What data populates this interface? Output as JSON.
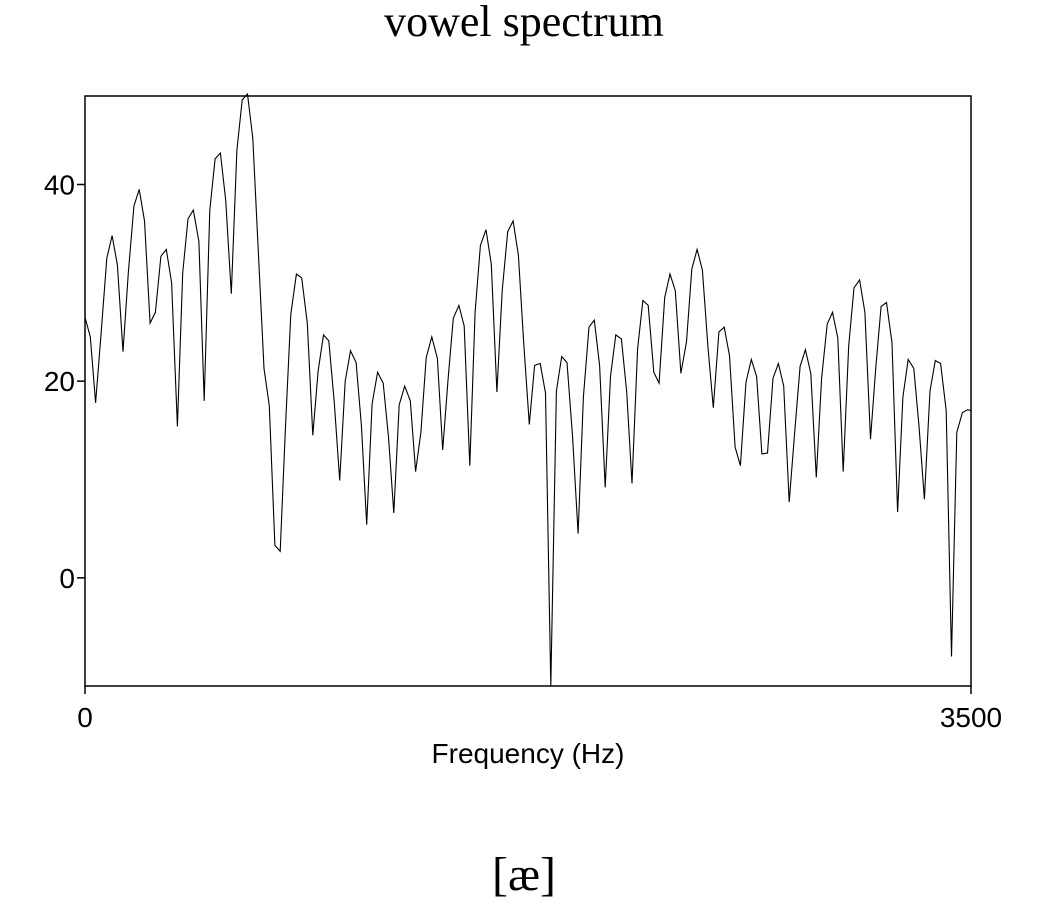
{
  "title": "vowel spectrum",
  "caption": "[æ]",
  "chart_data": {
    "type": "line",
    "title": "vowel spectrum",
    "xlabel": "Frequency (Hz)",
    "ylabel": "",
    "xlim": [
      0,
      3500
    ],
    "ylim": [
      -11,
      49
    ],
    "x_ticks": [
      0,
      3500
    ],
    "x_tick_labels": [
      "0",
      "3500"
    ],
    "y_ticks": [
      0,
      20,
      40
    ],
    "y_tick_labels": [
      "0",
      "20",
      "40"
    ],
    "grid": false,
    "legend": "none",
    "line_color": "#000000",
    "series": [
      {
        "values": [
          [
            0,
            26.5
          ],
          [
            21,
            24.5
          ],
          [
            42,
            17.8
          ],
          [
            63,
            24.6
          ],
          [
            86,
            32.5
          ],
          [
            107,
            34.8
          ],
          [
            128,
            31.8
          ],
          [
            150,
            23.0
          ],
          [
            171,
            31.0
          ],
          [
            193,
            37.8
          ],
          [
            214,
            39.5
          ],
          [
            235,
            36.3
          ],
          [
            257,
            25.9
          ],
          [
            278,
            27.0
          ],
          [
            300,
            32.7
          ],
          [
            321,
            33.4
          ],
          [
            342,
            30.0
          ],
          [
            365,
            15.4
          ],
          [
            386,
            31.0
          ],
          [
            407,
            36.5
          ],
          [
            428,
            37.4
          ],
          [
            450,
            34.2
          ],
          [
            471,
            18.0
          ],
          [
            493,
            37.4
          ],
          [
            514,
            42.6
          ],
          [
            535,
            43.2
          ],
          [
            556,
            38.4
          ],
          [
            578,
            28.9
          ],
          [
            600,
            43.5
          ],
          [
            621,
            48.6
          ],
          [
            642,
            49.2
          ],
          [
            663,
            44.7
          ],
          [
            685,
            33.0
          ],
          [
            707,
            21.3
          ],
          [
            728,
            17.5
          ],
          [
            750,
            3.3
          ],
          [
            771,
            2.7
          ],
          [
            792,
            15.4
          ],
          [
            813,
            26.8
          ],
          [
            835,
            30.9
          ],
          [
            856,
            30.5
          ],
          [
            878,
            25.9
          ],
          [
            900,
            14.5
          ],
          [
            921,
            21.0
          ],
          [
            942,
            24.7
          ],
          [
            963,
            24.1
          ],
          [
            985,
            17.8
          ],
          [
            1006,
            9.9
          ],
          [
            1028,
            20.0
          ],
          [
            1049,
            23.1
          ],
          [
            1071,
            21.9
          ],
          [
            1092,
            15.5
          ],
          [
            1113,
            5.4
          ],
          [
            1134,
            17.7
          ],
          [
            1156,
            20.9
          ],
          [
            1178,
            19.8
          ],
          [
            1199,
            14.3
          ],
          [
            1220,
            6.6
          ],
          [
            1241,
            17.6
          ],
          [
            1263,
            19.5
          ],
          [
            1285,
            18.0
          ],
          [
            1306,
            10.8
          ],
          [
            1327,
            14.8
          ],
          [
            1348,
            22.4
          ],
          [
            1370,
            24.5
          ],
          [
            1392,
            22.3
          ],
          [
            1413,
            13.0
          ],
          [
            1434,
            20.1
          ],
          [
            1455,
            26.4
          ],
          [
            1477,
            27.7
          ],
          [
            1498,
            25.6
          ],
          [
            1520,
            11.4
          ],
          [
            1541,
            27.0
          ],
          [
            1562,
            33.8
          ],
          [
            1584,
            35.4
          ],
          [
            1605,
            31.9
          ],
          [
            1627,
            18.9
          ],
          [
            1648,
            29.2
          ],
          [
            1670,
            35.2
          ],
          [
            1691,
            36.3
          ],
          [
            1712,
            32.8
          ],
          [
            1733,
            23.9
          ],
          [
            1755,
            15.6
          ],
          [
            1776,
            21.6
          ],
          [
            1798,
            21.8
          ],
          [
            1819,
            18.8
          ],
          [
            1840,
            -11.0
          ],
          [
            1862,
            19.0
          ],
          [
            1883,
            22.5
          ],
          [
            1904,
            21.9
          ],
          [
            1926,
            14.3
          ],
          [
            1948,
            4.5
          ],
          [
            1969,
            18.4
          ],
          [
            1991,
            25.5
          ],
          [
            2012,
            26.2
          ],
          [
            2033,
            21.6
          ],
          [
            2055,
            9.2
          ],
          [
            2076,
            20.5
          ],
          [
            2097,
            24.7
          ],
          [
            2119,
            24.3
          ],
          [
            2140,
            18.9
          ],
          [
            2161,
            9.6
          ],
          [
            2183,
            23.3
          ],
          [
            2204,
            28.2
          ],
          [
            2225,
            27.7
          ],
          [
            2247,
            20.9
          ],
          [
            2268,
            19.8
          ],
          [
            2290,
            28.5
          ],
          [
            2311,
            30.9
          ],
          [
            2332,
            29.2
          ],
          [
            2354,
            20.8
          ],
          [
            2376,
            24.0
          ],
          [
            2397,
            31.4
          ],
          [
            2418,
            33.4
          ],
          [
            2439,
            31.3
          ],
          [
            2461,
            23.4
          ],
          [
            2482,
            17.3
          ],
          [
            2504,
            25.0
          ],
          [
            2525,
            25.5
          ],
          [
            2546,
            22.6
          ],
          [
            2568,
            13.3
          ],
          [
            2589,
            11.4
          ],
          [
            2611,
            19.9
          ],
          [
            2632,
            22.2
          ],
          [
            2653,
            20.5
          ],
          [
            2674,
            12.6
          ],
          [
            2696,
            12.7
          ],
          [
            2718,
            20.3
          ],
          [
            2739,
            21.8
          ],
          [
            2760,
            19.5
          ],
          [
            2782,
            7.7
          ],
          [
            2803,
            14.7
          ],
          [
            2825,
            21.5
          ],
          [
            2846,
            23.2
          ],
          [
            2867,
            20.8
          ],
          [
            2889,
            10.2
          ],
          [
            2910,
            20.3
          ],
          [
            2932,
            25.8
          ],
          [
            2953,
            27.0
          ],
          [
            2974,
            24.4
          ],
          [
            2995,
            10.8
          ],
          [
            3017,
            23.6
          ],
          [
            3038,
            29.5
          ],
          [
            3060,
            30.3
          ],
          [
            3081,
            27.0
          ],
          [
            3103,
            14.1
          ],
          [
            3124,
            21.4
          ],
          [
            3145,
            27.6
          ],
          [
            3166,
            28.0
          ],
          [
            3188,
            23.9
          ],
          [
            3210,
            6.7
          ],
          [
            3231,
            18.4
          ],
          [
            3252,
            22.2
          ],
          [
            3274,
            21.3
          ],
          [
            3295,
            15.3
          ],
          [
            3316,
            8.0
          ],
          [
            3338,
            19.0
          ],
          [
            3359,
            22.1
          ],
          [
            3380,
            21.8
          ],
          [
            3402,
            17.0
          ],
          [
            3423,
            -8.0
          ],
          [
            3444,
            14.8
          ],
          [
            3466,
            16.8
          ],
          [
            3487,
            17.1
          ],
          [
            3500,
            17.0
          ]
        ]
      }
    ]
  }
}
